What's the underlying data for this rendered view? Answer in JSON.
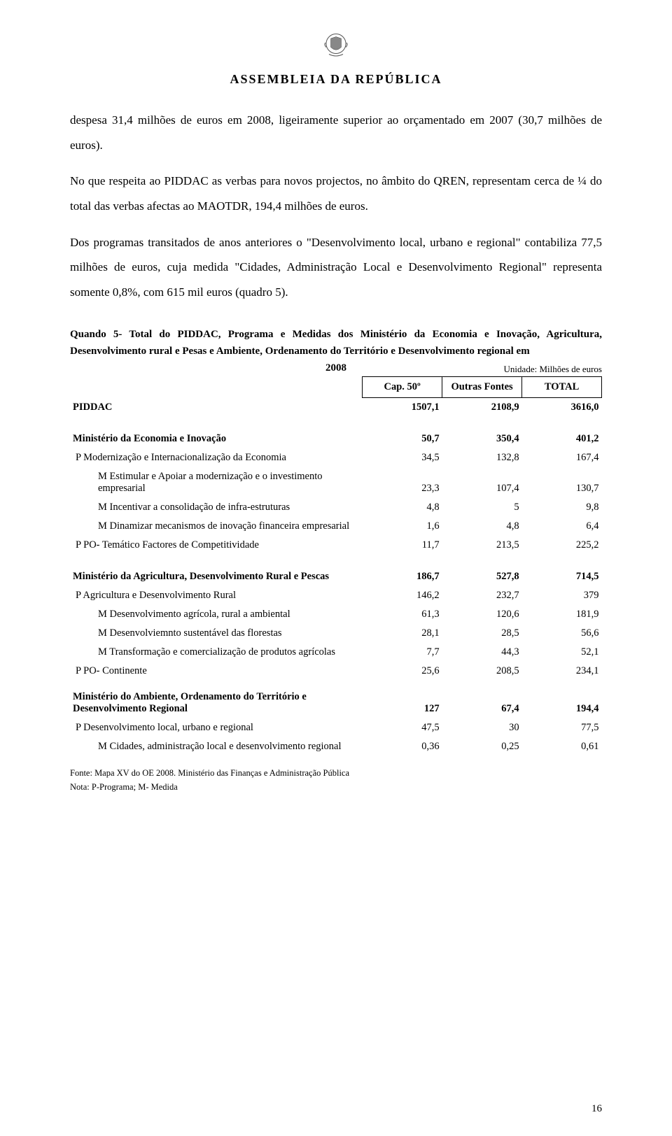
{
  "header": {
    "institution": "ASSEMBLEIA DA REPÚBLICA"
  },
  "paragraphs": {
    "p1": "despesa 31,4 milhões de euros em 2008, ligeiramente superior ao orçamentado em 2007 (30,7 milhões de euros).",
    "p2": "No que respeita ao PIDDAC as verbas para novos projectos, no âmbito do QREN, representam cerca de ¼ do total das verbas afectas ao MAOTDR, 194,4 milhões de euros.",
    "p3": "Dos programas transitados de anos anteriores o \"Desenvolvimento local, urbano e regional\" contabiliza 77,5 milhões de euros, cuja medida \"Cidades, Administração Local e Desenvolvimento Regional\" representa somente 0,8%, com 615 mil euros (quadro 5)."
  },
  "table": {
    "caption": "Quando 5- Total do PIDDAC, Programa e Medidas dos Ministério da Economia e Inovação, Agricultura, Desenvolvimento rural e Pesas e Ambiente, Ordenamento do Território e Desenvolvimento regional em",
    "caption_year": "2008",
    "unit": "Unidade: Milhões de euros",
    "columns": {
      "c1": "Cap. 50º",
      "c2": "Outras Fontes",
      "c3": "TOTAL"
    },
    "rows": [
      {
        "type": "section",
        "label": "PIDDAC",
        "v1": "1507,1",
        "v2": "2108,9",
        "v3": "3616,0"
      },
      {
        "type": "spacer"
      },
      {
        "type": "section",
        "label": "Ministério da Economia e Inovação",
        "v1": "50,7",
        "v2": "350,4",
        "v3": "401,2"
      },
      {
        "type": "p",
        "label": "P  Modernização e Internacionalização da Economia",
        "v1": "34,5",
        "v2": "132,8",
        "v3": "167,4"
      },
      {
        "type": "m",
        "label": "M Estimular e Apoiar a modernização e o investimento empresarial",
        "v1": "23,3",
        "v2": "107,4",
        "v3": "130,7"
      },
      {
        "type": "m",
        "label": "M Incentivar a consolidação de infra-estruturas",
        "v1": "4,8",
        "v2": "5",
        "v3": "9,8"
      },
      {
        "type": "m",
        "label": "M Dinamizar mecanismos de inovação financeira empresarial",
        "v1": "1,6",
        "v2": "4,8",
        "v3": "6,4"
      },
      {
        "type": "p",
        "label": "P  PO- Temático Factores de Competitividade",
        "v1": "11,7",
        "v2": "213,5",
        "v3": "225,2"
      },
      {
        "type": "spacer"
      },
      {
        "type": "section",
        "label": "Ministério da Agricultura, Desenvolvimento Rural e Pescas",
        "v1": "186,7",
        "v2": "527,8",
        "v3": "714,5"
      },
      {
        "type": "p",
        "label": "P  Agricultura e Desenvolvimento Rural",
        "v1": "146,2",
        "v2": "232,7",
        "v3": "379"
      },
      {
        "type": "m",
        "label": "M Desenvolvimento agrícola, rural a ambiental",
        "v1": "61,3",
        "v2": "120,6",
        "v3": "181,9"
      },
      {
        "type": "m",
        "label": "M Desenvolviemnto sustentável das florestas",
        "v1": "28,1",
        "v2": "28,5",
        "v3": "56,6"
      },
      {
        "type": "m",
        "label": "M Transformação e comercialização de produtos agrícolas",
        "v1": "7,7",
        "v2": "44,3",
        "v3": "52,1"
      },
      {
        "type": "p",
        "label": "P  PO- Continente",
        "v1": "25,6",
        "v2": "208,5",
        "v3": "234,1"
      },
      {
        "type": "spacer-small"
      },
      {
        "type": "section",
        "label": "Ministério do Ambiente, Ordenamento do Território e Desenvolvimento Regional",
        "v1": "127",
        "v2": "67,4",
        "v3": "194,4"
      },
      {
        "type": "p",
        "label": "P  Desenvolvimento local, urbano e regional",
        "v1": "47,5",
        "v2": "30",
        "v3": "77,5"
      },
      {
        "type": "m",
        "label": "M Cidades, administração local e desenvolvimento regional",
        "v1": "0,36",
        "v2": "0,25",
        "v3": "0,61"
      }
    ]
  },
  "footnotes": {
    "f1": "Fonte: Mapa XV do OE 2008. Ministério das Finanças e Administração Pública",
    "f2": "Nota: P-Programa; M- Medida"
  },
  "page_number": "16",
  "colors": {
    "text": "#000000",
    "bg": "#ffffff",
    "border": "#000000"
  }
}
